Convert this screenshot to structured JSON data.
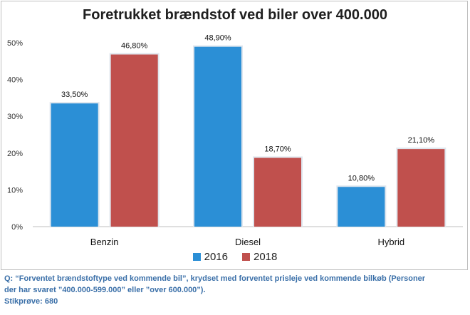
{
  "chart_data": {
    "type": "bar",
    "title": "Foretrukket brændstof ved biler over 400.000",
    "categories": [
      "Benzin",
      "Diesel",
      "Hybrid"
    ],
    "series": [
      {
        "name": "2016",
        "values": [
          33.5,
          48.9,
          10.8
        ],
        "labels": [
          "33,50%",
          "48,90%",
          "10,80%"
        ],
        "color": "#2b8fd6"
      },
      {
        "name": "2018",
        "values": [
          46.8,
          18.7,
          21.1
        ],
        "labels": [
          "46,80%",
          "18,70%",
          "21,10%"
        ],
        "color": "#c0504d"
      }
    ],
    "ylim": [
      0,
      50
    ],
    "yticks": [
      "0%",
      "10%",
      "20%",
      "30%",
      "40%",
      "50%"
    ],
    "grid": false,
    "legend": "bottom"
  },
  "footnote": {
    "line1": "Q: “Forventet brændstoftype ved kommende bil”, krydset med forventet prisleje ved kommende bilkøb (Personer",
    "line2": "der har svaret ”400.000-599.000” eller ”over 600.000”).",
    "line3": "Stikprøve: 680"
  }
}
